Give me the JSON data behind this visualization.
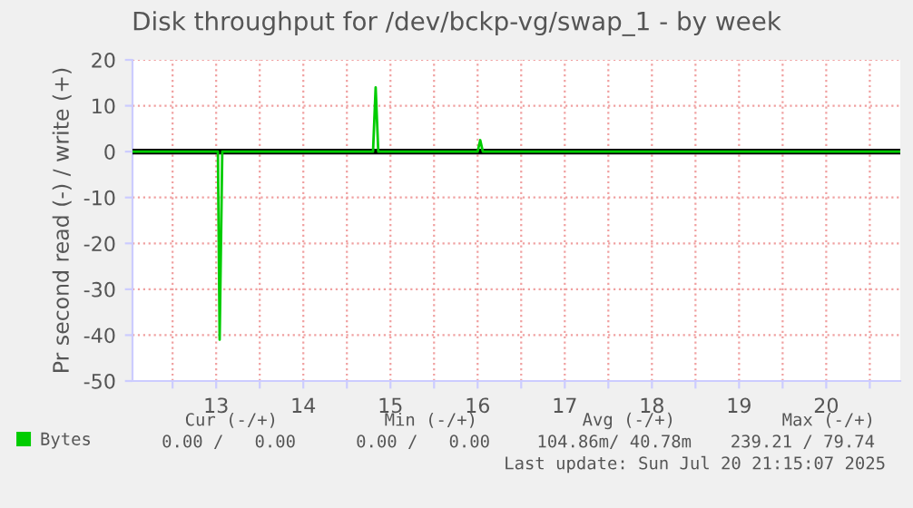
{
  "chart_data": {
    "type": "line",
    "title": "Disk throughput for /dev/bckp-vg/swap_1 - by week",
    "ylabel": "Pr second read (-) / write (+)",
    "x": [
      12.04,
      13.02,
      13.04,
      13.07,
      14.8,
      14.83,
      14.86,
      16.0,
      16.03,
      16.06,
      20.85
    ],
    "series": [
      {
        "name": "Bytes",
        "color": "#00cc00",
        "values": [
          0,
          0,
          -41,
          0,
          0,
          14,
          0,
          0,
          2.5,
          0,
          0
        ]
      }
    ],
    "xlim": [
      12.04,
      20.85
    ],
    "xticks": [
      {
        "value": 12.5,
        "label": null
      },
      13,
      {
        "value": 13.5,
        "label": null
      },
      14,
      {
        "value": 14.5,
        "label": null
      },
      15,
      {
        "value": 15.5,
        "label": null
      },
      16,
      {
        "value": 16.5,
        "label": null
      },
      17,
      {
        "value": 17.5,
        "label": null
      },
      18,
      {
        "value": 18.5,
        "label": null
      },
      19,
      {
        "value": 19.5,
        "label": null
      },
      20,
      {
        "value": 20.5,
        "label": null
      }
    ],
    "ylim": [
      -50,
      20
    ],
    "yticks": [
      -50,
      -40,
      -30,
      -20,
      -10,
      0,
      10,
      20
    ],
    "ref_lines": [
      {
        "axis": "y",
        "value": 0,
        "color": "#000000"
      }
    ],
    "grid": true,
    "legend": "bottom",
    "annotations": [
      "Cur (-/+)",
      "Min (-/+)",
      "Avg (-/+)",
      "Max (-/+)",
      "0.00 /   0.00",
      "0.00 /   0.00",
      "104.86m/ 40.78m",
      "239.21 / 79.74",
      "Last update: Sun Jul 20 21:15:07 2025"
    ]
  }
}
